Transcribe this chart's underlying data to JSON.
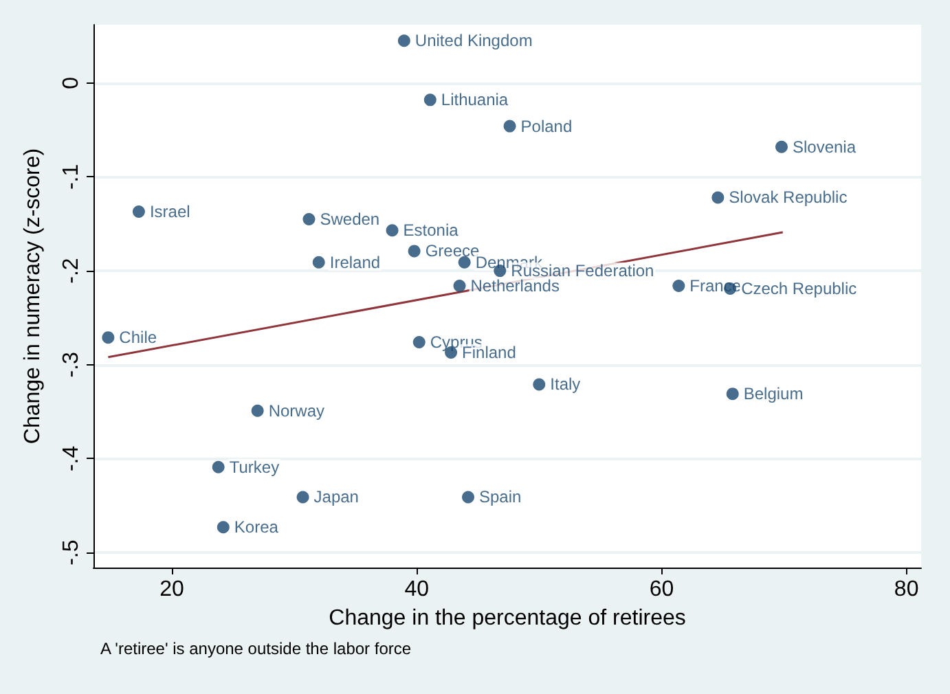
{
  "chart_data": {
    "type": "scatter",
    "xlabel": "Change in the percentage of retirees",
    "ylabel": "Change in numeracy (z-score)",
    "xlim": [
      13.6,
      81.2
    ],
    "ylim": [
      -0.516,
      0.062
    ],
    "xticks": [
      20,
      40,
      60,
      80
    ],
    "yticks": [
      {
        "value": 0,
        "label": "0"
      },
      {
        "value": -0.1,
        "label": "-.1"
      },
      {
        "value": -0.2,
        "label": "-.2"
      },
      {
        "value": -0.3,
        "label": "-.3"
      },
      {
        "value": -0.4,
        "label": "-.4"
      },
      {
        "value": -0.5,
        "label": "-.5"
      }
    ],
    "grid": "y",
    "series": [
      {
        "marker": "circle",
        "color": "#1a476f",
        "x": [
          38.97,
          41.1,
          47.6,
          69.8,
          64.6,
          17.3,
          31.2,
          38.0,
          39.8,
          32.0,
          43.9,
          46.8,
          43.5,
          61.4,
          65.6,
          14.8,
          40.2,
          42.8,
          50.0,
          65.8,
          27.0,
          23.8,
          30.7,
          44.2,
          24.2
        ],
        "values": [
          0.045,
          -0.018,
          -0.046,
          -0.068,
          -0.122,
          -0.137,
          -0.145,
          -0.157,
          -0.179,
          -0.191,
          -0.191,
          -0.2,
          -0.216,
          -0.216,
          -0.219,
          -0.271,
          -0.276,
          -0.287,
          -0.321,
          -0.331,
          -0.349,
          -0.409,
          -0.441,
          -0.441,
          -0.473
        ]
      },
      {
        "type": "line",
        "color": "#90353b",
        "x": [
          14.8,
          69.9
        ],
        "values": [
          -0.292,
          -0.159
        ]
      }
    ],
    "annotations": [
      {
        "text": "United Kingdom",
        "x": 38.97,
        "y": 0.045
      },
      {
        "text": "Lithuania",
        "x": 41.1,
        "y": -0.018
      },
      {
        "text": "Poland",
        "x": 47.6,
        "y": -0.046
      },
      {
        "text": "Slovenia",
        "x": 69.8,
        "y": -0.068
      },
      {
        "text": "Slovak Republic",
        "x": 64.6,
        "y": -0.122
      },
      {
        "text": "Israel",
        "x": 17.3,
        "y": -0.137
      },
      {
        "text": "Sweden",
        "x": 31.2,
        "y": -0.145
      },
      {
        "text": "Estonia",
        "x": 38.0,
        "y": -0.157
      },
      {
        "text": "Greece",
        "x": 39.8,
        "y": -0.179
      },
      {
        "text": "Ireland",
        "x": 32.0,
        "y": -0.191
      },
      {
        "text": "Denmark",
        "x": 43.9,
        "y": -0.191
      },
      {
        "text": "Russian Federation",
        "x": 46.8,
        "y": -0.2
      },
      {
        "text": "Netherlands",
        "x": 43.5,
        "y": -0.216
      },
      {
        "text": "France",
        "x": 61.4,
        "y": -0.216
      },
      {
        "text": "Czech Republic",
        "x": 65.6,
        "y": -0.219
      },
      {
        "text": "Chile",
        "x": 14.8,
        "y": -0.271
      },
      {
        "text": "Cyprus",
        "x": 40.2,
        "y": -0.276
      },
      {
        "text": "Finland",
        "x": 42.8,
        "y": -0.287
      },
      {
        "text": "Italy",
        "x": 50.0,
        "y": -0.321
      },
      {
        "text": "Belgium",
        "x": 65.8,
        "y": -0.331
      },
      {
        "text": "Norway",
        "x": 27.0,
        "y": -0.349
      },
      {
        "text": "Turkey",
        "x": 23.8,
        "y": -0.409
      },
      {
        "text": "Japan",
        "x": 30.7,
        "y": -0.441
      },
      {
        "text": "Spain",
        "x": 44.2,
        "y": -0.441
      },
      {
        "text": "Korea",
        "x": 24.2,
        "y": -0.473
      },
      "A 'retiree' is anyone outside the labor force"
    ]
  }
}
